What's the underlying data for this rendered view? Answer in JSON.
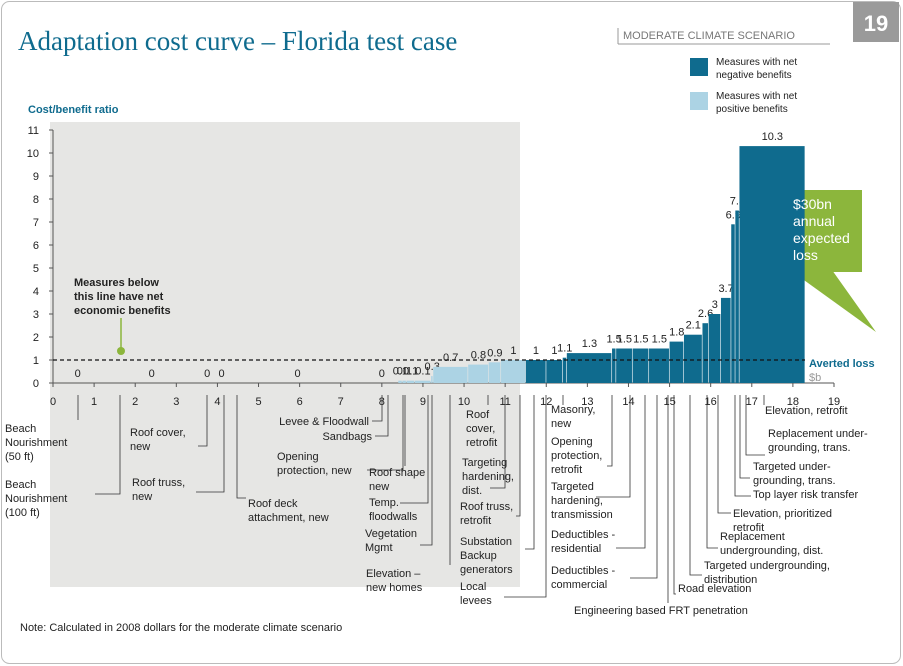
{
  "chart_data": {
    "type": "cost-curve",
    "title": "Adaptation cost curve – Florida test case",
    "scenario": "MODERATE CLIMATE SCENARIO",
    "page_number": "19",
    "y_label": "Cost/benefit ratio",
    "x_label": "Averted loss",
    "x_unit": "$b",
    "xlim": [
      0,
      19
    ],
    "xticks": [
      0,
      1,
      2,
      3,
      4,
      5,
      6,
      7,
      8,
      9,
      10,
      11,
      12,
      13,
      14,
      15,
      16,
      17,
      18,
      19
    ],
    "ylim": [
      0,
      11
    ],
    "yticks": [
      0,
      1,
      2,
      3,
      4,
      5,
      6,
      7,
      8,
      9,
      10,
      11
    ],
    "reference_line": 1,
    "annotation": [
      "Measures below",
      "this line have net",
      "economic benefits"
    ],
    "callout": [
      "$30bn",
      "annual",
      "expected",
      "loss"
    ],
    "legend": [
      {
        "name": [
          "Measures with net",
          "negative benefits"
        ],
        "color": "#0f6b8e"
      },
      {
        "name": [
          "Measures with net",
          "positive benefits"
        ],
        "color": "#acd3e4"
      }
    ],
    "categories": [
      [
        "Beach",
        "Nourishment",
        "(50 ft)"
      ],
      [
        "Beach",
        "Nourishment",
        "(100 ft)"
      ],
      [
        "Roof cover,",
        "new"
      ],
      [
        "Roof truss,",
        "new"
      ],
      [
        "Roof deck",
        "attachment, new"
      ],
      [
        "Levee & Floodwall"
      ],
      [
        "Sandbags"
      ],
      [
        "Opening",
        "protection, new"
      ],
      [
        "Roof shape",
        "new"
      ],
      [
        "Temp.",
        "floodwalls"
      ],
      [
        "Vegetation",
        "Mgmt"
      ],
      [
        "Elevation –",
        "new homes"
      ],
      [
        "Roof",
        "cover,",
        "retrofit"
      ],
      [
        "Targeting",
        "hardening,",
        "dist."
      ],
      [
        "Roof truss,",
        "retrofit"
      ],
      [
        "Substation",
        "Backup",
        "generators"
      ],
      [
        "Local",
        "levees"
      ],
      [
        "Masonry,",
        "new"
      ],
      [
        "Opening",
        "protection,",
        "retrofit"
      ],
      [
        "Targeted",
        "hardening,",
        "transmission"
      ],
      [
        "Deductibles -",
        "residential"
      ],
      [
        "Deductibles -",
        "commercial"
      ],
      [
        "Engineering based FRT penetration"
      ],
      [
        "Road elevation"
      ],
      [
        "Targeted undergrounding,",
        "distribution"
      ],
      [
        "Replacement",
        "undergrounding, dist."
      ],
      [
        "Elevation, prioritized",
        "retrofit"
      ],
      [
        "Top layer risk transfer"
      ],
      [
        "Targeted under-",
        "grounding, trans."
      ],
      [
        "Replacement under-",
        "grounding, trans."
      ],
      [
        "Elevation, retrofit"
      ]
    ],
    "values": [
      0,
      0,
      0,
      0,
      0,
      0,
      0.1,
      0.1,
      0.1,
      0.1,
      0.3,
      0.7,
      0.8,
      0.9,
      1.0,
      1.0,
      1.0,
      1.1,
      1.3,
      1.5,
      1.5,
      1.5,
      1.5,
      1.8,
      2.1,
      2.6,
      3.0,
      3.7,
      6.9,
      7.5,
      10.3
    ],
    "widths": [
      1.2,
      2.4,
      0.3,
      0.4,
      3.3,
      0.8,
      0.1,
      0.1,
      0.2,
      0.4,
      0.05,
      0.85,
      0.5,
      0.3,
      0.6,
      0.5,
      0.4,
      0.1,
      1.1,
      0.1,
      0.4,
      0.4,
      0.5,
      0.35,
      0.45,
      0.15,
      0.3,
      0.25,
      0.1,
      0.1,
      1.6
    ],
    "bar_colors": [
      "#acd3e4",
      "#acd3e4",
      "#acd3e4",
      "#acd3e4",
      "#acd3e4",
      "#acd3e4",
      "#acd3e4",
      "#acd3e4",
      "#acd3e4",
      "#acd3e4",
      "#acd3e4",
      "#acd3e4",
      "#acd3e4",
      "#acd3e4",
      "#acd3e4",
      "#0f6b8e",
      "#0f6b8e",
      "#0f6b8e",
      "#0f6b8e",
      "#0f6b8e",
      "#0f6b8e",
      "#0f6b8e",
      "#0f6b8e",
      "#0f6b8e",
      "#0f6b8e",
      "#0f6b8e",
      "#0f6b8e",
      "#0f6b8e",
      "#0f6b8e",
      "#0f6b8e",
      "#0f6b8e"
    ],
    "note": "Note: Calculated in 2008 dollars for  the moderate climate scenario"
  }
}
